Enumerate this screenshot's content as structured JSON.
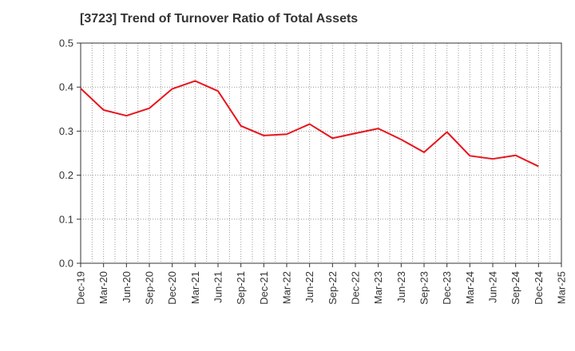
{
  "chart_data": {
    "type": "line",
    "title": "[3723]  Trend of Turnover Ratio of Total Assets",
    "xlabel": "",
    "ylabel": "",
    "categories": [
      "Dec-19",
      "Mar-20",
      "Jun-20",
      "Sep-20",
      "Dec-20",
      "Mar-21",
      "Jun-21",
      "Sep-21",
      "Dec-21",
      "Mar-22",
      "Jun-22",
      "Sep-22",
      "Dec-22",
      "Mar-23",
      "Jun-23",
      "Sep-23",
      "Dec-23",
      "Mar-24",
      "Jun-24",
      "Sep-24",
      "Dec-24",
      "Mar-25"
    ],
    "series": [
      {
        "values": [
          0.397,
          0.348,
          0.335,
          0.352,
          0.396,
          0.414,
          0.391,
          0.312,
          0.29,
          0.293,
          0.316,
          0.284,
          0.295,
          0.306,
          0.281,
          0.252,
          0.298,
          0.244,
          0.237,
          0.245,
          0.22,
          null
        ],
        "color": "#e8141c"
      }
    ],
    "ylim": [
      0,
      0.5
    ],
    "yticks": [
      "0.0",
      "0.1",
      "0.2",
      "0.3",
      "0.4",
      "0.5"
    ],
    "ytick_values": [
      0,
      0.1,
      0.2,
      0.3,
      0.4,
      0.5
    ],
    "grid": true,
    "legend": "none"
  }
}
